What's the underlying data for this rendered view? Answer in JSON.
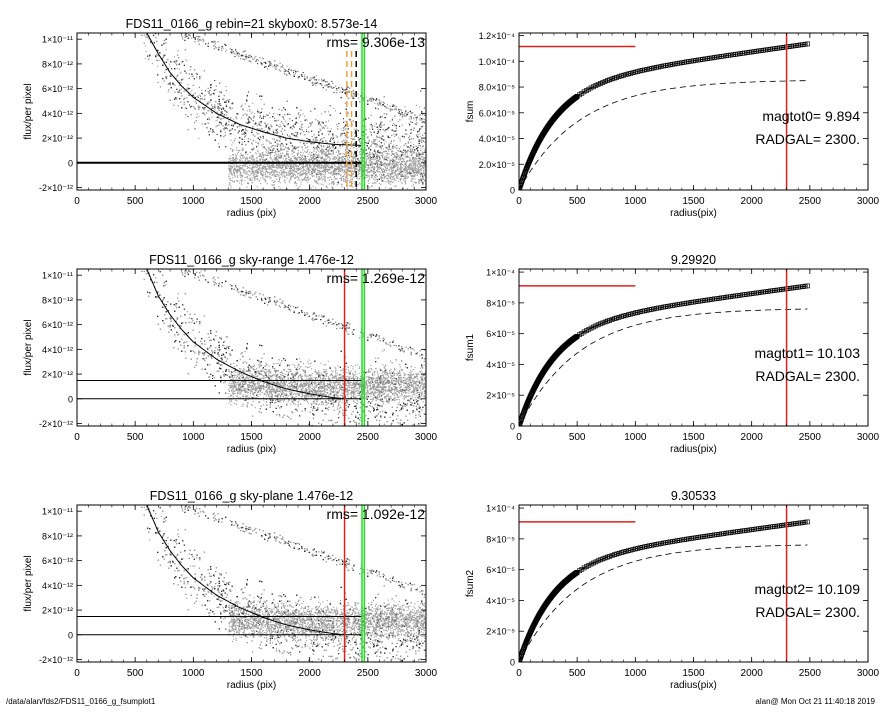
{
  "footer": {
    "left": "/data/alan/fds2/FDS11_0166_g_fsumplot1",
    "right": "alan@  Mon Oct 21 11:40:18 2019"
  },
  "colors": {
    "scatter": "#9a9a9a",
    "scatter_dark": "#333333",
    "red": "#e0201b",
    "green": "#22dd22",
    "orange": "#f0a040",
    "black": "#000000"
  },
  "chart_data": [
    {
      "type": "scatter",
      "title": "FDS11_0166_g rebin=21    skybox0:  8.573e-14",
      "annotation": "rms= 9.306e-13",
      "xlabel": "radius (pix)",
      "ylabel": "flux/per pixel",
      "xlim": [
        0,
        3000
      ],
      "ylim": [
        -2.2e-12,
        1.05e-11
      ],
      "xticks": [
        "0",
        "500",
        "1000",
        "1500",
        "2000",
        "2500",
        "3000"
      ],
      "yticks": [
        {
          "v": -2e-12,
          "label": "-2×10⁻¹²"
        },
        {
          "v": 0,
          "label": "0"
        },
        {
          "v": 2e-12,
          "label": "2×10⁻¹²"
        },
        {
          "v": 4e-12,
          "label": "4×10⁻¹²"
        },
        {
          "v": 6e-12,
          "label": "6×10⁻¹²"
        },
        {
          "v": 8e-12,
          "label": "8×10⁻¹²"
        },
        {
          "v": 1e-11,
          "label": "1×10⁻¹¹"
        }
      ],
      "profile": [
        [
          600,
          1.05e-11
        ],
        [
          700,
          8.8e-12
        ],
        [
          800,
          7.3e-12
        ],
        [
          900,
          6.2e-12
        ],
        [
          1000,
          5.3e-12
        ],
        [
          1200,
          4e-12
        ],
        [
          1400,
          3.1e-12
        ],
        [
          1600,
          2.5e-12
        ],
        [
          1800,
          2e-12
        ],
        [
          2000,
          1.7e-12
        ],
        [
          2200,
          1.5e-12
        ],
        [
          2450,
          1.4e-12
        ]
      ],
      "hlines": [
        0
      ],
      "sky_level": 0,
      "vlines": [
        {
          "x": 2450,
          "color": "green"
        },
        {
          "x": 2470,
          "color": "green"
        },
        {
          "x": 2320,
          "color": "orange",
          "dashed": true
        },
        {
          "x": 2360,
          "color": "orange",
          "dashed": true
        },
        {
          "x": 2400,
          "color": "black",
          "dashed": true
        }
      ]
    },
    {
      "type": "line",
      "title": "",
      "annotations": [
        "magtot0=   9.894",
        "RADGAL=   2300."
      ],
      "xlabel": "radius(pix)",
      "ylabel": "fsum",
      "xlim": [
        0,
        3000
      ],
      "ylim": [
        0,
        0.000122
      ],
      "xticks": [
        "0",
        "500",
        "1000",
        "1500",
        "2000",
        "2500",
        "3000"
      ],
      "yticks": [
        {
          "v": 0,
          "label": "0"
        },
        {
          "v": 2e-05,
          "label": "2.0×10⁻⁵"
        },
        {
          "v": 4e-05,
          "label": "4.0×10⁻⁵"
        },
        {
          "v": 6e-05,
          "label": "6.0×10⁻⁵"
        },
        {
          "v": 8e-05,
          "label": "8.0×10⁻⁵"
        },
        {
          "v": 0.0001,
          "label": "1.0×10⁻⁴"
        },
        {
          "v": 0.00012,
          "label": "1.2×10⁻⁴"
        }
      ],
      "curve_end": 0.0001135,
      "dashed_end": 8.5e-05,
      "hsegment": {
        "y": 0.0001115,
        "x0": 0,
        "x1": 1000
      },
      "vline": 2300
    },
    {
      "type": "scatter",
      "title": "FDS11_0166_g sky-range  1.476e-12",
      "annotation": "rms= 1.269e-12",
      "xlabel": "radius (pix)",
      "ylabel": "flux/per pixel",
      "xlim": [
        0,
        3000
      ],
      "ylim": [
        -2.2e-12,
        1.05e-11
      ],
      "xticks": [
        "0",
        "500",
        "1000",
        "1500",
        "2000",
        "2500",
        "3000"
      ],
      "yticks": [
        {
          "v": -2e-12,
          "label": "-2×10⁻¹²"
        },
        {
          "v": 0,
          "label": "0"
        },
        {
          "v": 2e-12,
          "label": "2×10⁻¹²"
        },
        {
          "v": 4e-12,
          "label": "4×10⁻¹²"
        },
        {
          "v": 6e-12,
          "label": "6×10⁻¹²"
        },
        {
          "v": 8e-12,
          "label": "8×10⁻¹²"
        },
        {
          "v": 1e-11,
          "label": "1×10⁻¹¹"
        }
      ],
      "profile": [
        [
          600,
          1.05e-11
        ],
        [
          700,
          8.3e-12
        ],
        [
          800,
          6.8e-12
        ],
        [
          900,
          5.6e-12
        ],
        [
          1000,
          4.6e-12
        ],
        [
          1200,
          3.2e-12
        ],
        [
          1400,
          2.2e-12
        ],
        [
          1600,
          1.4e-12
        ],
        [
          1800,
          8e-13
        ],
        [
          2000,
          4e-13
        ],
        [
          2200,
          1e-13
        ],
        [
          2300,
          0
        ]
      ],
      "hlines": [
        1.476e-12,
        0
      ],
      "sky_level": 1.476e-12,
      "vlines": [
        {
          "x": 2300,
          "color": "red"
        },
        {
          "x": 2450,
          "color": "green"
        },
        {
          "x": 2470,
          "color": "green"
        }
      ]
    },
    {
      "type": "line",
      "title": "9.29920",
      "annotations": [
        "magtot1=  10.103",
        "RADGAL=   2300."
      ],
      "xlabel": "radius(pix)",
      "ylabel": "fsum1",
      "xlim": [
        0,
        3000
      ],
      "ylim": [
        0,
        0.000102
      ],
      "xticks": [
        "0",
        "500",
        "1000",
        "1500",
        "2000",
        "2500",
        "3000"
      ],
      "yticks": [
        {
          "v": 0,
          "label": "0"
        },
        {
          "v": 2e-05,
          "label": "2×10⁻⁵"
        },
        {
          "v": 4e-05,
          "label": "4×10⁻⁵"
        },
        {
          "v": 6e-05,
          "label": "6×10⁻⁵"
        },
        {
          "v": 8e-05,
          "label": "8×10⁻⁵"
        },
        {
          "v": 0.0001,
          "label": "1×10⁻⁴"
        }
      ],
      "curve_end": 9.1e-05,
      "dashed_end": 7.6e-05,
      "hsegment": {
        "y": 9.1e-05,
        "x0": 0,
        "x1": 1000
      },
      "vline": 2300
    },
    {
      "type": "scatter",
      "title": "FDS11_0166_g sky-plane  1.476e-12",
      "annotation": "rms= 1.092e-12",
      "xlabel": "radius (pix)",
      "ylabel": "flux/per pixel",
      "xlim": [
        0,
        3000
      ],
      "ylim": [
        -2.2e-12,
        1.05e-11
      ],
      "xticks": [
        "0",
        "500",
        "1000",
        "1500",
        "2000",
        "2500",
        "3000"
      ],
      "yticks": [
        {
          "v": -2e-12,
          "label": "-2×10⁻¹²"
        },
        {
          "v": 0,
          "label": "0"
        },
        {
          "v": 2e-12,
          "label": "2×10⁻¹²"
        },
        {
          "v": 4e-12,
          "label": "4×10⁻¹²"
        },
        {
          "v": 6e-12,
          "label": "6×10⁻¹²"
        },
        {
          "v": 8e-12,
          "label": "8×10⁻¹²"
        },
        {
          "v": 1e-11,
          "label": "1×10⁻¹¹"
        }
      ],
      "profile": [
        [
          600,
          1.05e-11
        ],
        [
          700,
          8.3e-12
        ],
        [
          800,
          6.8e-12
        ],
        [
          900,
          5.6e-12
        ],
        [
          1000,
          4.6e-12
        ],
        [
          1200,
          3.2e-12
        ],
        [
          1400,
          2.2e-12
        ],
        [
          1600,
          1.4e-12
        ],
        [
          1800,
          8e-13
        ],
        [
          2000,
          4e-13
        ],
        [
          2200,
          1e-13
        ],
        [
          2300,
          0
        ]
      ],
      "hlines": [
        1.476e-12,
        0
      ],
      "sky_level": 1.476e-12,
      "vlines": [
        {
          "x": 2300,
          "color": "red"
        },
        {
          "x": 2450,
          "color": "green"
        },
        {
          "x": 2470,
          "color": "green"
        }
      ]
    },
    {
      "type": "line",
      "title": "9.30533",
      "annotations": [
        "magtot2=  10.109",
        "RADGAL=   2300."
      ],
      "xlabel": "radius(pix)",
      "ylabel": "fsum2",
      "xlim": [
        0,
        3000
      ],
      "ylim": [
        0,
        0.000102
      ],
      "xticks": [
        "0",
        "500",
        "1000",
        "1500",
        "2000",
        "2500",
        "3000"
      ],
      "yticks": [
        {
          "v": 0,
          "label": "0"
        },
        {
          "v": 2e-05,
          "label": "2×10⁻⁵"
        },
        {
          "v": 4e-05,
          "label": "4×10⁻⁵"
        },
        {
          "v": 6e-05,
          "label": "6×10⁻⁵"
        },
        {
          "v": 8e-05,
          "label": "8×10⁻⁵"
        },
        {
          "v": 0.0001,
          "label": "1×10⁻⁴"
        }
      ],
      "curve_end": 9.1e-05,
      "dashed_end": 7.6e-05,
      "hsegment": {
        "y": 9.1e-05,
        "x0": 0,
        "x1": 1000
      },
      "vline": 2300
    }
  ]
}
